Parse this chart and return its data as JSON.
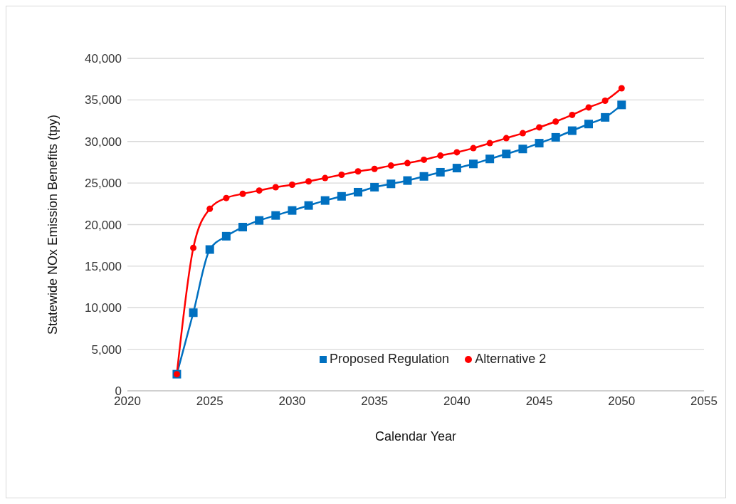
{
  "chart_data": {
    "type": "line",
    "xlabel": "Calendar Year",
    "ylabel": "Statewide NOx Emission Benefits (tpy)",
    "x": [
      2023,
      2024,
      2025,
      2026,
      2027,
      2028,
      2029,
      2030,
      2031,
      2032,
      2033,
      2034,
      2035,
      2036,
      2037,
      2038,
      2039,
      2040,
      2041,
      2042,
      2043,
      2044,
      2045,
      2046,
      2047,
      2048,
      2049,
      2050
    ],
    "series": [
      {
        "name": "Proposed Regulation",
        "color": "#0070c0",
        "marker": "square",
        "values": [
          2000,
          9400,
          17000,
          18600,
          19700,
          20500,
          21100,
          21700,
          22300,
          22900,
          23400,
          23900,
          24500,
          24900,
          25300,
          25800,
          26300,
          26800,
          27300,
          27900,
          28500,
          29100,
          29800,
          30500,
          31300,
          32100,
          32900,
          34400
        ]
      },
      {
        "name": "Alternative 2",
        "color": "#ff0000",
        "marker": "circle",
        "values": [
          2000,
          17200,
          21900,
          23200,
          23700,
          24100,
          24500,
          24800,
          25200,
          25600,
          26000,
          26400,
          26700,
          27100,
          27400,
          27800,
          28300,
          28700,
          29200,
          29800,
          30400,
          31000,
          31700,
          32400,
          33200,
          34100,
          34900,
          36400
        ]
      }
    ],
    "xlim": [
      2020,
      2055
    ],
    "xticks": [
      2020,
      2025,
      2030,
      2035,
      2040,
      2045,
      2050,
      2055
    ],
    "ylim": [
      0,
      40000
    ],
    "yticks": [
      {
        "value": 0,
        "label": "0"
      },
      {
        "value": 5000,
        "label": "5,000"
      },
      {
        "value": 10000,
        "label": "10,000"
      },
      {
        "value": 15000,
        "label": "15,000"
      },
      {
        "value": 20000,
        "label": "20,000"
      },
      {
        "value": 25000,
        "label": "25,000"
      },
      {
        "value": 30000,
        "label": "30,000"
      },
      {
        "value": 35000,
        "label": "35,000"
      },
      {
        "value": 40000,
        "label": "40,000"
      }
    ],
    "grid": "y",
    "legend": "bottom right"
  }
}
